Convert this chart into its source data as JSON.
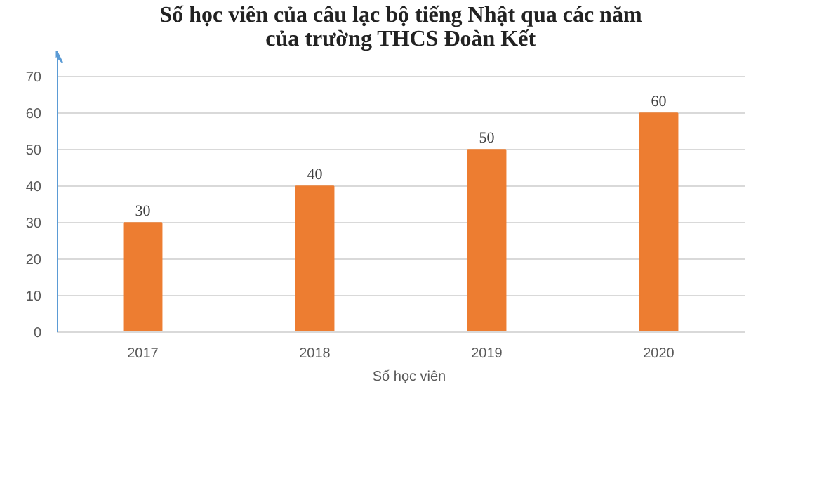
{
  "chart_data": {
    "type": "bar",
    "title": "Số học viên của câu lạc bộ tiếng Nhật qua các năm của trường THCS Đoàn Kết",
    "categories": [
      "2017",
      "2018",
      "2019",
      "2020"
    ],
    "series": [
      {
        "name": "Số học viên",
        "color": "#ed7d31",
        "values": [
          30,
          40,
          50,
          60
        ]
      }
    ],
    "ylim": [
      0,
      77
    ],
    "yticks": [
      0,
      10,
      20,
      30,
      40,
      50,
      60,
      70
    ],
    "grid": "y",
    "legend": "bottom",
    "data_labels": true
  }
}
